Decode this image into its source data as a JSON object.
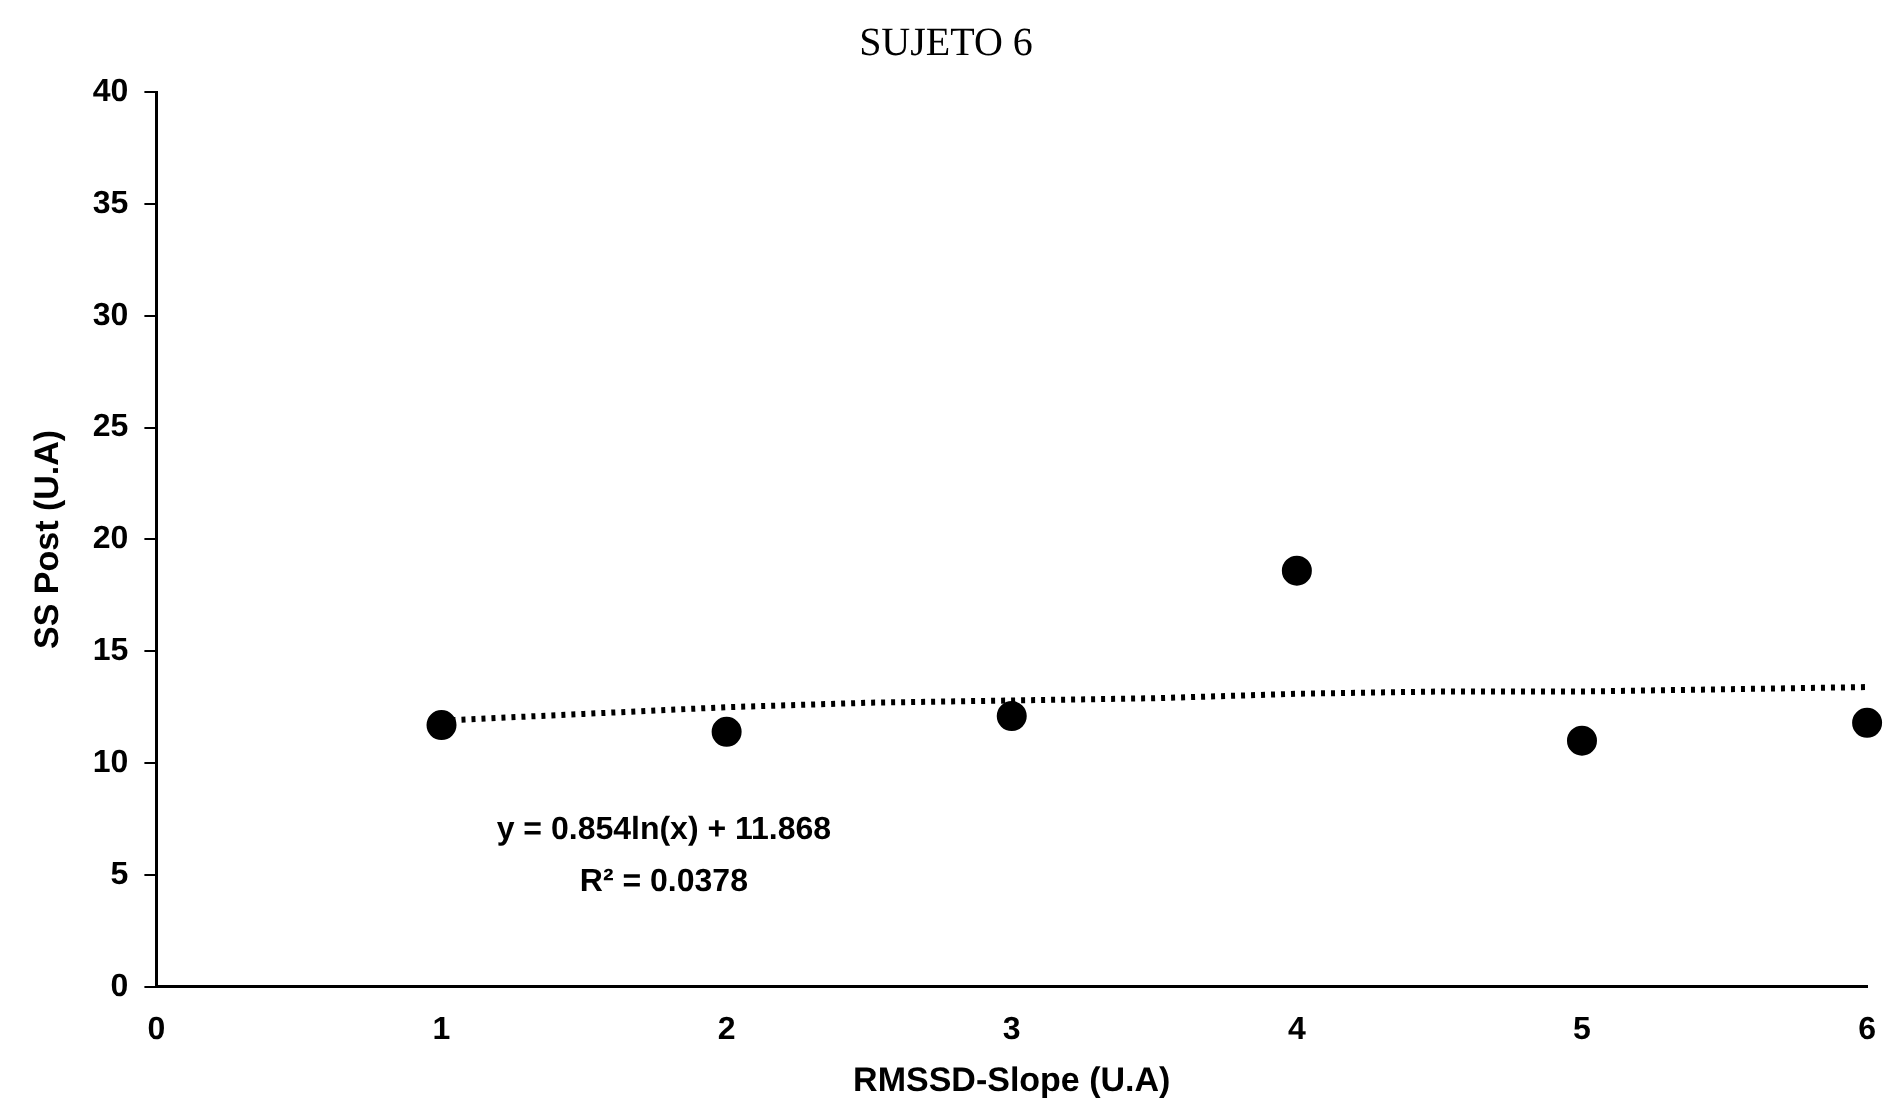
{
  "chart_data": {
    "type": "scatter",
    "title": "SUJETO 6",
    "xlabel": "RMSSD-Slope (U.A)",
    "ylabel": "SS Post (U.A)",
    "xlim": [
      0,
      6
    ],
    "xticks": [
      0,
      1,
      2,
      3,
      4,
      5,
      6
    ],
    "ylim": [
      0,
      40
    ],
    "yticks": [
      0,
      5,
      10,
      15,
      20,
      25,
      30,
      35,
      40
    ],
    "grid": false,
    "legend": false,
    "marker": "circle",
    "series": [
      {
        "color": "#000000",
        "x": [
          1,
          2,
          3,
          4,
          5,
          6
        ],
        "values": [
          11.7,
          11.4,
          12.1,
          18.6,
          11.0,
          11.8
        ]
      },
      {
        "type": "line",
        "line_style": "dotted",
        "marker": "none",
        "color": "#000000",
        "x": [
          1,
          1.5,
          2,
          2.5,
          3,
          3.5,
          4,
          4.5,
          5,
          5.5,
          6
        ],
        "values": [
          11.9,
          12.2,
          12.5,
          12.7,
          12.8,
          12.9,
          13.1,
          13.2,
          13.2,
          13.3,
          13.4
        ]
      }
    ],
    "annotations": [
      "y = 0.854ln(x) + 11.868",
      "R² = 0.0378"
    ]
  }
}
